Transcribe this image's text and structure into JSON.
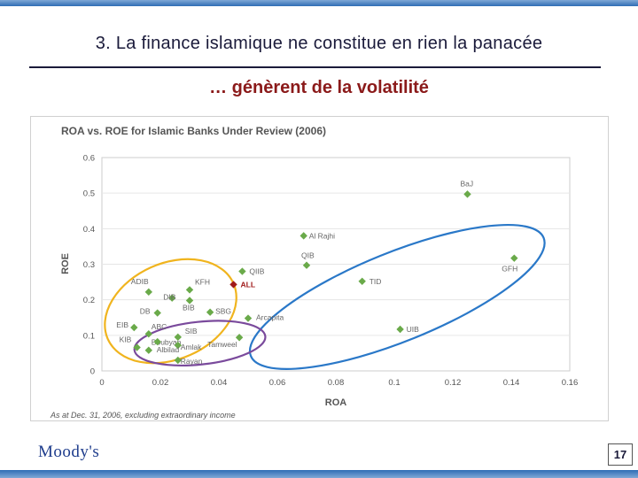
{
  "slide": {
    "title": "3. La finance islamique ne constitue en rien la panacée",
    "subtitle": "… génèrent de la volatilité",
    "page_number": "17",
    "logo": "Moody's"
  },
  "chart_data": {
    "type": "scatter",
    "title": "ROA vs. ROE for Islamic Banks Under Review (2006)",
    "xlabel": "ROA",
    "ylabel": "ROE",
    "footnote": "As at Dec. 31, 2006, excluding extraordinary income",
    "xlim": [
      0,
      0.16
    ],
    "ylim": [
      0,
      0.6
    ],
    "xticks": [
      "0",
      "0.02",
      "0.04",
      "0.06",
      "0.08",
      "0.1",
      "0.12",
      "0.14",
      "0.16"
    ],
    "yticks": [
      "0",
      "0.1",
      "0.2",
      "0.3",
      "0.4",
      "0.5",
      "0.6"
    ],
    "grid": true,
    "colors": {
      "point": "#6aaa4a",
      "highlight": "#a01a1a",
      "axis_title": "#555555",
      "ellipse_yellow": "#f0b41e",
      "ellipse_blue": "#2a78c8",
      "ellipse_purple": "#7a4a9c"
    },
    "points": [
      {
        "label": "BaJ",
        "x": 0.125,
        "y": 0.497
      },
      {
        "label": "GFH",
        "x": 0.141,
        "y": 0.317
      },
      {
        "label": "Al Rajhi",
        "x": 0.069,
        "y": 0.38
      },
      {
        "label": "QIB",
        "x": 0.07,
        "y": 0.297
      },
      {
        "label": "QIIB",
        "x": 0.048,
        "y": 0.28
      },
      {
        "label": "TID",
        "x": 0.089,
        "y": 0.252
      },
      {
        "label": "ALL",
        "x": 0.045,
        "y": 0.243,
        "highlight": true
      },
      {
        "label": "ADIB",
        "x": 0.016,
        "y": 0.222
      },
      {
        "label": "DIB",
        "x": 0.024,
        "y": 0.205
      },
      {
        "label": "KFH",
        "x": 0.03,
        "y": 0.228
      },
      {
        "label": "BIB",
        "x": 0.03,
        "y": 0.198
      },
      {
        "label": "DB",
        "x": 0.019,
        "y": 0.163
      },
      {
        "label": "SBG",
        "x": 0.037,
        "y": 0.165
      },
      {
        "label": "Arcapita",
        "x": 0.05,
        "y": 0.148
      },
      {
        "label": "EIB",
        "x": 0.011,
        "y": 0.122
      },
      {
        "label": "ABC",
        "x": 0.016,
        "y": 0.104
      },
      {
        "label": "SIB",
        "x": 0.026,
        "y": 0.095
      },
      {
        "label": "UIB",
        "x": 0.102,
        "y": 0.117
      },
      {
        "label": "KIB",
        "x": 0.012,
        "y": 0.066
      },
      {
        "label": "Boubyan",
        "x": 0.016,
        "y": 0.058
      },
      {
        "label": "Amlak",
        "x": 0.026,
        "y": 0.072
      },
      {
        "label": "Tamweel",
        "x": 0.047,
        "y": 0.094
      },
      {
        "label": "Albilad",
        "x": 0.019,
        "y": 0.082
      },
      {
        "label": "Rayan",
        "x": 0.026,
        "y": 0.03
      }
    ]
  }
}
